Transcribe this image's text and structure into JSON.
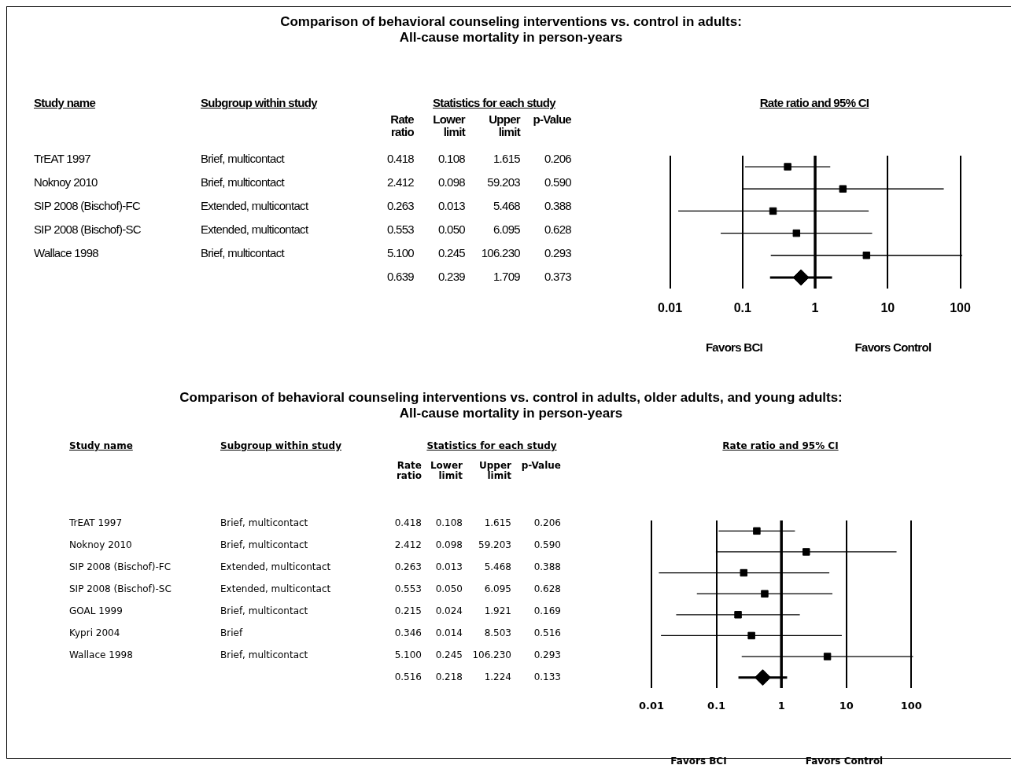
{
  "chart_data": [
    {
      "type": "scatter",
      "orientation": "horizontal",
      "title": "Comparison of behavioral counseling interventions vs. control in adults:\nAll-cause mortality in person-years",
      "xlabel": "Rate ratio and 95% CI",
      "categories": [
        "TrEAT 1997",
        "Noknoy 2010",
        "SIP 2008 (Bischof)-FC",
        "SIP 2008 (Bischof)-SC",
        "Wallace 1998",
        null
      ],
      "y2_categories": [
        "Brief, multicontact",
        "Brief, multicontact",
        "Extended, multicontact",
        "Extended, multicontact",
        "Brief, multicontact",
        null
      ],
      "cell_labels": [
        [
          "0.418",
          "0.108",
          "1.615",
          "0.206"
        ],
        [
          "2.412",
          "0.098",
          "59.203",
          "0.590"
        ],
        [
          "0.263",
          "0.013",
          "5.468",
          "0.388"
        ],
        [
          "0.553",
          "0.050",
          "6.095",
          "0.628"
        ],
        [
          "5.100",
          "0.245",
          "106.230",
          "0.293"
        ],
        [
          "0.639",
          "0.239",
          "1.709",
          "0.373"
        ]
      ],
      "series": [
        {
          "color": "#000000",
          "marker": "square",
          "values": [
            0.418,
            2.412,
            0.263,
            0.553,
            5.1,
            null
          ],
          "errors": [
            [
              0.108,
              1.615
            ],
            [
              0.098,
              59.203
            ],
            [
              0.013,
              5.468
            ],
            [
              0.05,
              6.095
            ],
            [
              0.245,
              106.23
            ],
            null
          ]
        },
        {
          "color": "#000000",
          "marker": "diamond",
          "values": [
            null,
            null,
            null,
            null,
            null,
            0.639
          ],
          "errors": [
            null,
            null,
            null,
            null,
            null,
            [
              0.239,
              1.709
            ]
          ]
        }
      ],
      "annotations": [
        "Study name",
        "Subgroup within study",
        "Statistics for each study",
        "Rate ratio",
        "Lower limit",
        "Upper limit",
        "p-Value",
        "Favors BCI",
        "Favors Control"
      ],
      "ref_lines": [
        {
          "axis": "x",
          "value": 1
        }
      ],
      "log": "x",
      "grid": "x",
      "tick_labels": "x",
      "xlim": [
        0.01,
        110
      ],
      "xticks": [
        0.01,
        0.1,
        1,
        10,
        100
      ]
    },
    {
      "type": "scatter",
      "orientation": "horizontal",
      "title": "Comparison of behavioral counseling interventions vs. control in adults, older adults, and young adults:\nAll-cause mortality in person-years",
      "xlabel": "Rate ratio and 95% CI",
      "categories": [
        "TrEAT 1997",
        "Noknoy 2010",
        "SIP 2008 (Bischof)-FC",
        "SIP 2008 (Bischof)-SC",
        "GOAL 1999",
        "Kypri 2004",
        "Wallace 1998",
        null
      ],
      "y2_categories": [
        "Brief, multicontact",
        "Brief, multicontact",
        "Extended, multicontact",
        "Extended, multicontact",
        "Brief, multicontact",
        "Brief",
        "Brief, multicontact",
        null
      ],
      "cell_labels": [
        [
          "0.418",
          "0.108",
          "1.615",
          "0.206"
        ],
        [
          "2.412",
          "0.098",
          "59.203",
          "0.590"
        ],
        [
          "0.263",
          "0.013",
          "5.468",
          "0.388"
        ],
        [
          "0.553",
          "0.050",
          "6.095",
          "0.628"
        ],
        [
          "0.215",
          "0.024",
          "1.921",
          "0.169"
        ],
        [
          "0.346",
          "0.014",
          "8.503",
          "0.516"
        ],
        [
          "5.100",
          "0.245",
          "106.230",
          "0.293"
        ],
        [
          "0.516",
          "0.218",
          "1.224",
          "0.133"
        ]
      ],
      "series": [
        {
          "color": "#000000",
          "marker": "square",
          "values": [
            0.418,
            2.412,
            0.263,
            0.553,
            0.215,
            0.346,
            5.1,
            null
          ],
          "errors": [
            [
              0.108,
              1.615
            ],
            [
              0.098,
              59.203
            ],
            [
              0.013,
              5.468
            ],
            [
              0.05,
              6.095
            ],
            [
              0.024,
              1.921
            ],
            [
              0.014,
              8.503
            ],
            [
              0.245,
              106.23
            ],
            null
          ]
        },
        {
          "color": "#000000",
          "marker": "diamond",
          "values": [
            null,
            null,
            null,
            null,
            null,
            null,
            null,
            0.516
          ],
          "errors": [
            null,
            null,
            null,
            null,
            null,
            null,
            null,
            [
              0.218,
              1.224
            ]
          ]
        }
      ],
      "annotations": [
        "Study name",
        "Subgroup within study",
        "Statistics for each study",
        "Rate ratio",
        "Lower limit",
        "Upper limit",
        "p-Value",
        "Favors BCI",
        "Favors Control"
      ],
      "ref_lines": [
        {
          "axis": "x",
          "value": 1
        }
      ],
      "log": "x",
      "grid": "x",
      "tick_labels": "x",
      "xlim": [
        0.01,
        110
      ],
      "xticks": [
        0.01,
        0.1,
        1,
        10,
        100
      ]
    }
  ]
}
